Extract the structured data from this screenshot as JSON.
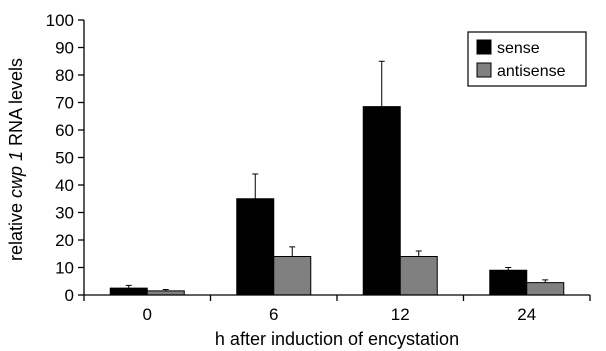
{
  "chart_data": {
    "type": "bar",
    "categories": [
      "0",
      "6",
      "12",
      "24"
    ],
    "series": [
      {
        "name": "sense",
        "values": [
          2.5,
          35,
          68.5,
          9
        ],
        "errors": [
          1,
          9,
          16.5,
          1
        ],
        "color": "#000000"
      },
      {
        "name": "antisense",
        "values": [
          1.5,
          14,
          14,
          4.5
        ],
        "errors": [
          0.5,
          3.5,
          2,
          1
        ],
        "color": "#808080"
      }
    ],
    "xlabel": "h after induction of encystation",
    "ylabel": {
      "prefix": "relative ",
      "italic": "cwp 1",
      "suffix": " RNA levels"
    },
    "ylim": [
      0,
      100
    ],
    "yticks": [
      0,
      10,
      20,
      30,
      40,
      50,
      60,
      70,
      80,
      90,
      100
    ],
    "grid": false,
    "legend_position": "top-right"
  }
}
